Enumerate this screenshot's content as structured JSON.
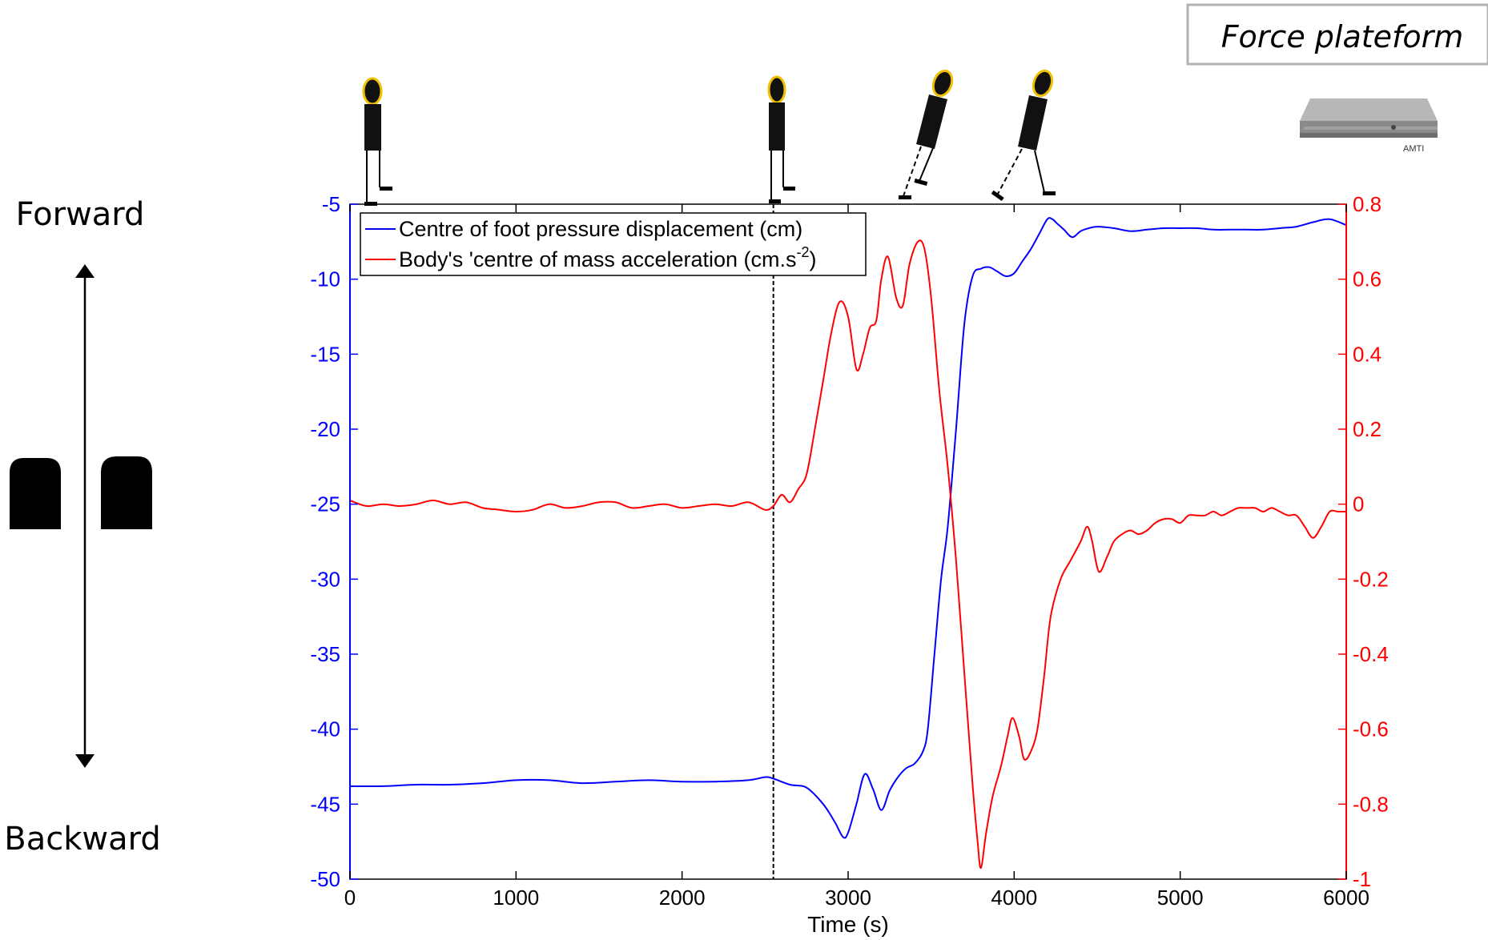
{
  "left_panel": {
    "forward_label": "Forward",
    "backward_label": "Backward"
  },
  "force_platform": {
    "label": "Force plateform",
    "brand": "AMTI"
  },
  "colors": {
    "cop": "#0000ff",
    "com": "#ff0000",
    "axes": "#000000"
  },
  "chart_data": {
    "type": "line",
    "xlabel": "Time (s)",
    "xlim": [
      0,
      6000
    ],
    "xticks": [
      0,
      1000,
      2000,
      3000,
      4000,
      5000,
      6000
    ],
    "marker_x": 2550,
    "left_axis": {
      "ylim": [
        -50,
        -5
      ],
      "ticks": [
        -5,
        -10,
        -15,
        -20,
        -25,
        -30,
        -35,
        -40,
        -45,
        -50
      ],
      "color": "#0000ff"
    },
    "right_axis": {
      "ylim": [
        -1,
        0.8
      ],
      "ticks": [
        0.8,
        0.6,
        0.4,
        0.2,
        0,
        -0.2,
        -0.4,
        -0.6,
        -0.8,
        -1
      ],
      "color": "#ff0000"
    },
    "legend": {
      "entries": [
        {
          "label": "Centre of foot pressure displacement (cm)",
          "color": "#0000ff"
        },
        {
          "label": "Body's 'centre of mass acceleration (cm.s",
          "superscript": "-2",
          "suffix": ")",
          "color": "#ff0000"
        }
      ]
    },
    "series": [
      {
        "name": "Centre of foot pressure displacement (cm)",
        "axis": "left",
        "color": "#0000ff",
        "x": [
          0,
          200,
          400,
          600,
          800,
          1000,
          1200,
          1400,
          1600,
          1800,
          2000,
          2200,
          2400,
          2500,
          2550,
          2650,
          2750,
          2850,
          2920,
          2970,
          3000,
          3050,
          3100,
          3150,
          3200,
          3250,
          3300,
          3350,
          3400,
          3450,
          3480,
          3520,
          3560,
          3600,
          3650,
          3700,
          3750,
          3800,
          3850,
          3900,
          3950,
          4000,
          4050,
          4100,
          4150,
          4200,
          4230,
          4260,
          4300,
          4350,
          4400,
          4450,
          4500,
          4600,
          4700,
          4800,
          4900,
          5000,
          5100,
          5200,
          5300,
          5400,
          5500,
          5600,
          5700,
          5800,
          5900,
          6000
        ],
        "y": [
          -43.8,
          -43.8,
          -43.7,
          -43.7,
          -43.6,
          -43.4,
          -43.4,
          -43.6,
          -43.5,
          -43.4,
          -43.5,
          -43.5,
          -43.4,
          -43.2,
          -43.3,
          -43.7,
          -43.9,
          -45.0,
          -46.2,
          -47.2,
          -46.9,
          -45.0,
          -43.0,
          -44.0,
          -45.4,
          -44.1,
          -43.2,
          -42.6,
          -42.3,
          -41.5,
          -40.0,
          -35.0,
          -30.0,
          -26.5,
          -20.0,
          -13.0,
          -9.8,
          -9.3,
          -9.2,
          -9.5,
          -9.8,
          -9.6,
          -8.8,
          -8.0,
          -7.0,
          -6.0,
          -6.0,
          -6.3,
          -6.7,
          -7.2,
          -6.8,
          -6.6,
          -6.5,
          -6.6,
          -6.8,
          -6.7,
          -6.6,
          -6.6,
          -6.6,
          -6.7,
          -6.7,
          -6.7,
          -6.7,
          -6.6,
          -6.5,
          -6.2,
          -6.0,
          -6.4
        ]
      },
      {
        "name": "Body's 'centre of mass acceleration (cm.s-2)",
        "axis": "right",
        "color": "#ff0000",
        "x": [
          0,
          100,
          200,
          300,
          400,
          500,
          600,
          700,
          800,
          900,
          1000,
          1100,
          1200,
          1300,
          1400,
          1500,
          1600,
          1700,
          1800,
          1900,
          2000,
          2100,
          2200,
          2300,
          2400,
          2500,
          2550,
          2600,
          2650,
          2700,
          2750,
          2800,
          2850,
          2900,
          2950,
          3000,
          3050,
          3090,
          3130,
          3170,
          3200,
          3240,
          3290,
          3330,
          3370,
          3420,
          3460,
          3500,
          3550,
          3600,
          3650,
          3700,
          3750,
          3780,
          3800,
          3830,
          3870,
          3920,
          3960,
          3990,
          4030,
          4060,
          4100,
          4140,
          4180,
          4220,
          4280,
          4340,
          4400,
          4440,
          4470,
          4510,
          4560,
          4600,
          4650,
          4700,
          4750,
          4800,
          4850,
          4900,
          4950,
          5000,
          5050,
          5100,
          5150,
          5200,
          5250,
          5300,
          5350,
          5400,
          5450,
          5500,
          5550,
          5600,
          5650,
          5700,
          5750,
          5800,
          5850,
          5900,
          5950,
          6000
        ],
        "y": [
          0.01,
          -0.005,
          0.0,
          -0.005,
          0.0,
          0.01,
          0.0,
          0.005,
          -0.01,
          -0.015,
          -0.02,
          -0.015,
          0.0,
          -0.01,
          -0.005,
          0.005,
          0.005,
          -0.01,
          -0.005,
          0.0,
          -0.01,
          -0.005,
          0.0,
          -0.005,
          0.005,
          -0.015,
          -0.005,
          0.025,
          0.005,
          0.04,
          0.08,
          0.2,
          0.33,
          0.46,
          0.54,
          0.5,
          0.36,
          0.4,
          0.47,
          0.49,
          0.6,
          0.66,
          0.55,
          0.53,
          0.64,
          0.7,
          0.68,
          0.55,
          0.3,
          0.1,
          -0.15,
          -0.45,
          -0.75,
          -0.9,
          -0.97,
          -0.88,
          -0.78,
          -0.7,
          -0.62,
          -0.57,
          -0.62,
          -0.68,
          -0.66,
          -0.6,
          -0.46,
          -0.3,
          -0.2,
          -0.15,
          -0.1,
          -0.06,
          -0.1,
          -0.18,
          -0.14,
          -0.1,
          -0.08,
          -0.07,
          -0.08,
          -0.07,
          -0.05,
          -0.04,
          -0.04,
          -0.05,
          -0.03,
          -0.03,
          -0.03,
          -0.02,
          -0.03,
          -0.02,
          -0.01,
          -0.01,
          -0.01,
          -0.02,
          -0.01,
          -0.02,
          -0.03,
          -0.03,
          -0.06,
          -0.09,
          -0.06,
          -0.02,
          -0.02,
          -0.02
        ]
      }
    ]
  }
}
